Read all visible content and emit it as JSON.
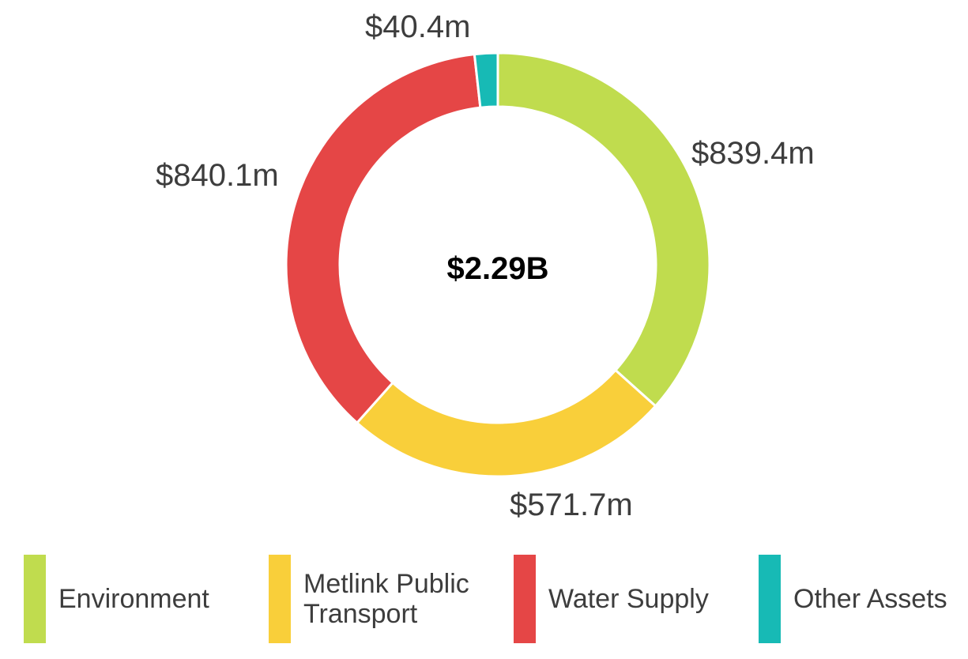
{
  "chart_data": {
    "type": "pie",
    "donut": true,
    "center_label": "$2.29B",
    "categories": [
      "Environment",
      "Metlink Public Transport",
      "Water Supply",
      "Other Assets"
    ],
    "values": [
      839.4,
      571.7,
      840.1,
      40.4
    ],
    "unit": "$m",
    "data_labels": [
      "$839.4m",
      "$571.7m",
      "$840.1m",
      "$40.4m"
    ],
    "colors": [
      "#c0dc4e",
      "#f9cf3a",
      "#e54646",
      "#17bab5"
    ],
    "start_angle": "top",
    "direction": "clockwise",
    "legend_position": "bottom",
    "legend": [
      "Environment",
      "Metlink Public\nTransport",
      "Water Supply",
      "Other Assets"
    ]
  }
}
